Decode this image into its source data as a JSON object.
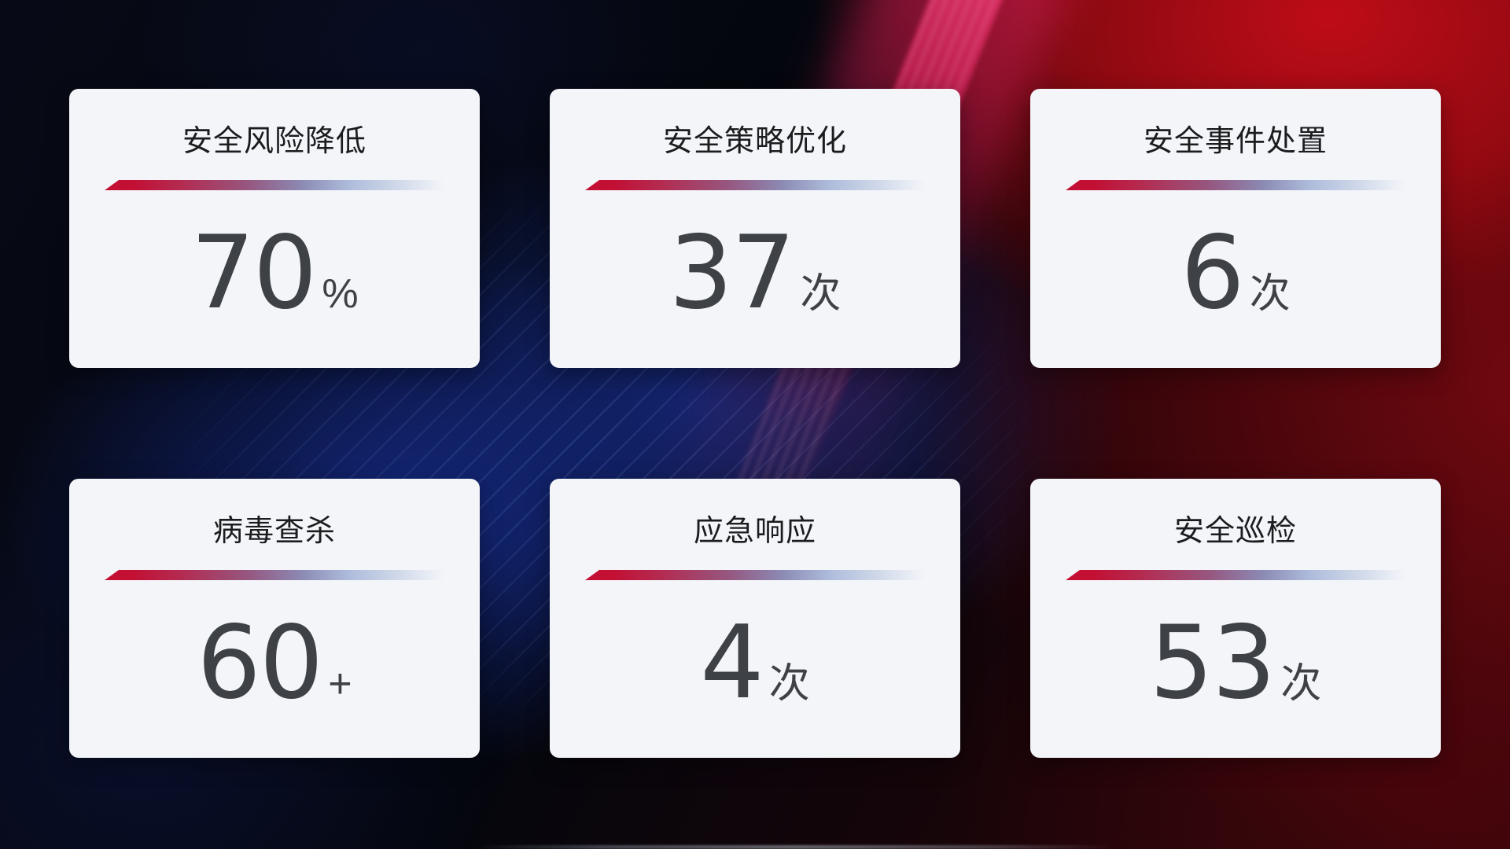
{
  "theme": {
    "card_background": "#f4f5f9",
    "title_color": "#1b1c1e",
    "number_color": "#3e4146",
    "accent_red": "#c30f33",
    "accent_blue_gray": "#aebcdc",
    "background_dark": "#04060d",
    "background_red_glow": "#a60d15",
    "background_blue_glow": "#1a2f8e"
  },
  "cards": [
    {
      "title": "安全风险降低",
      "value": "70",
      "unit": "%"
    },
    {
      "title": "安全策略优化",
      "value": "37",
      "unit": "次"
    },
    {
      "title": "安全事件处置",
      "value": "6",
      "unit": "次"
    },
    {
      "title": "病毒查杀",
      "value": "60",
      "unit": "+"
    },
    {
      "title": "应急响应",
      "value": "4",
      "unit": "次"
    },
    {
      "title": "安全巡检",
      "value": "53",
      "unit": "次"
    }
  ]
}
